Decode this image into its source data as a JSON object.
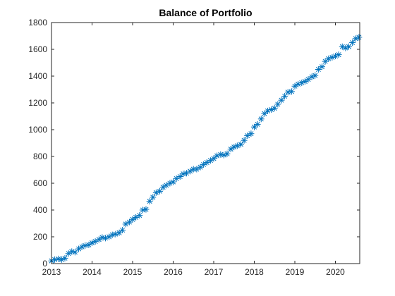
{
  "chart_data": {
    "type": "line",
    "title": "Balance of Portfolio",
    "xlabel": "",
    "ylabel": "",
    "xlim": [
      2013,
      2020.6
    ],
    "ylim": [
      0,
      1800
    ],
    "xticks": [
      2013,
      2014,
      2015,
      2016,
      2017,
      2018,
      2019,
      2020
    ],
    "yticks": [
      0,
      200,
      400,
      600,
      800,
      1000,
      1200,
      1400,
      1600,
      1800
    ],
    "marker": "asterisk",
    "line_style": "none",
    "grid": false,
    "box": true,
    "series_color": "#0072BD",
    "series": [
      {
        "x": [
          2013.0,
          2013.08,
          2013.17,
          2013.25,
          2013.33,
          2013.42,
          2013.5,
          2013.58,
          2013.67,
          2013.75,
          2013.83,
          2013.92,
          2014.0,
          2014.08,
          2014.17,
          2014.25,
          2014.33,
          2014.42,
          2014.5,
          2014.58,
          2014.67,
          2014.75,
          2014.83,
          2014.92,
          2015.0,
          2015.08,
          2015.17,
          2015.25,
          2015.33,
          2015.42,
          2015.5,
          2015.58,
          2015.67,
          2015.75,
          2015.83,
          2015.92,
          2016.0,
          2016.08,
          2016.17,
          2016.25,
          2016.33,
          2016.42,
          2016.5,
          2016.58,
          2016.67,
          2016.75,
          2016.83,
          2016.92,
          2017.0,
          2017.08,
          2017.17,
          2017.25,
          2017.33,
          2017.42,
          2017.5,
          2017.58,
          2017.67,
          2017.75,
          2017.83,
          2017.92,
          2018.0,
          2018.08,
          2018.17,
          2018.25,
          2018.33,
          2018.42,
          2018.5,
          2018.58,
          2018.67,
          2018.75,
          2018.83,
          2018.92,
          2019.0,
          2019.08,
          2019.17,
          2019.25,
          2019.33,
          2019.42,
          2019.5,
          2019.58,
          2019.67,
          2019.75,
          2019.83,
          2019.92,
          2020.0,
          2020.08,
          2020.17,
          2020.25,
          2020.33,
          2020.42,
          2020.5,
          2020.58
        ],
        "y": [
          20,
          30,
          35,
          30,
          40,
          75,
          90,
          85,
          110,
          125,
          135,
          140,
          155,
          165,
          180,
          195,
          190,
          200,
          215,
          220,
          230,
          250,
          295,
          310,
          330,
          345,
          360,
          400,
          405,
          465,
          495,
          530,
          540,
          570,
          585,
          600,
          610,
          635,
          650,
          670,
          675,
          690,
          705,
          705,
          720,
          740,
          755,
          770,
          785,
          805,
          815,
          810,
          820,
          855,
          870,
          880,
          890,
          920,
          955,
          970,
          1020,
          1040,
          1080,
          1120,
          1140,
          1150,
          1160,
          1190,
          1220,
          1250,
          1280,
          1285,
          1325,
          1340,
          1350,
          1360,
          1375,
          1395,
          1405,
          1450,
          1470,
          1510,
          1530,
          1540,
          1550,
          1560,
          1620,
          1610,
          1620,
          1650,
          1680,
          1690
        ]
      }
    ]
  }
}
